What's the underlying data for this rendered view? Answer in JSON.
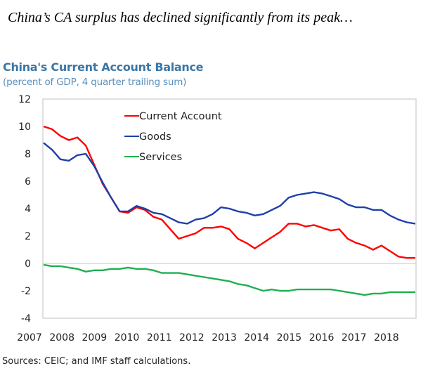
{
  "headline": "China’s CA surplus has declined significantly from its peak…",
  "source": "Sources: CEIC; and IMF staff calculations.",
  "chart_data": {
    "type": "line",
    "title": "China's Current Account Balance",
    "subtitle": "(percent of GDP, 4 quarter trailing sum)",
    "xlabel": "",
    "ylabel": "",
    "ylim": [
      -4,
      12
    ],
    "yticks": [
      "12",
      "10",
      "8",
      "6",
      "4",
      "2",
      "0",
      "-2",
      "-4"
    ],
    "ytick_values": [
      12,
      10,
      8,
      6,
      4,
      2,
      0,
      -2,
      -4
    ],
    "xticks": [
      "2007",
      "2008",
      "2009",
      "2010",
      "2011",
      "2012",
      "2013",
      "2014",
      "2015",
      "2016",
      "2017",
      "2018"
    ],
    "xlim": [
      2007.0,
      2018.5
    ],
    "grid": "zero-line only",
    "legend": "top-center",
    "x_frequency": "quarterly",
    "x_start": "2007Q1",
    "series": [
      {
        "name": "Current Account",
        "color": "#ff0000",
        "values": [
          10.0,
          9.8,
          9.3,
          9.0,
          9.2,
          8.6,
          7.2,
          5.8,
          4.8,
          3.8,
          3.7,
          4.1,
          3.9,
          3.4,
          3.2,
          2.5,
          1.8,
          2.0,
          2.2,
          2.6,
          2.6,
          2.7,
          2.5,
          1.8,
          1.5,
          1.1,
          1.5,
          1.9,
          2.3,
          2.9,
          2.9,
          2.7,
          2.8,
          2.6,
          2.4,
          2.5,
          1.8,
          1.5,
          1.3,
          1.0,
          1.3,
          0.9,
          0.5,
          0.4,
          0.4
        ]
      },
      {
        "name": "Goods",
        "color": "#1f3fa8",
        "values": [
          8.8,
          8.3,
          7.6,
          7.5,
          7.9,
          8.0,
          7.1,
          5.9,
          4.8,
          3.8,
          3.8,
          4.2,
          4.0,
          3.7,
          3.6,
          3.3,
          3.0,
          2.9,
          3.2,
          3.3,
          3.6,
          4.1,
          4.0,
          3.8,
          3.7,
          3.5,
          3.6,
          3.9,
          4.2,
          4.8,
          5.0,
          5.1,
          5.2,
          5.1,
          4.9,
          4.7,
          4.3,
          4.1,
          4.1,
          3.9,
          3.9,
          3.5,
          3.2,
          3.0,
          2.9
        ]
      },
      {
        "name": "Services",
        "color": "#1fb050",
        "values": [
          -0.1,
          -0.2,
          -0.2,
          -0.3,
          -0.4,
          -0.6,
          -0.5,
          -0.5,
          -0.4,
          -0.4,
          -0.3,
          -0.4,
          -0.4,
          -0.5,
          -0.7,
          -0.7,
          -0.7,
          -0.8,
          -0.9,
          -1.0,
          -1.1,
          -1.2,
          -1.3,
          -1.5,
          -1.6,
          -1.8,
          -2.0,
          -1.9,
          -2.0,
          -2.0,
          -1.9,
          -1.9,
          -1.9,
          -1.9,
          -1.9,
          -2.0,
          -2.1,
          -2.2,
          -2.3,
          -2.2,
          -2.2,
          -2.1,
          -2.1,
          -2.1,
          -2.1
        ]
      }
    ]
  }
}
